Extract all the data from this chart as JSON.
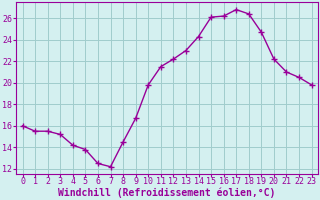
{
  "x": [
    0,
    1,
    2,
    3,
    4,
    5,
    6,
    7,
    8,
    9,
    10,
    11,
    12,
    13,
    14,
    15,
    16,
    17,
    18,
    19,
    20,
    21,
    22,
    23
  ],
  "y": [
    16.0,
    15.5,
    15.5,
    15.2,
    14.2,
    13.8,
    12.5,
    12.2,
    14.5,
    16.7,
    19.8,
    21.5,
    22.2,
    23.0,
    24.3,
    26.1,
    26.2,
    26.8,
    26.4,
    24.7,
    22.2,
    21.0,
    20.5,
    19.8
  ],
  "line_color": "#990099",
  "marker": "+",
  "bg_color": "#d4f0f0",
  "grid_color": "#a0cccc",
  "xlabel": "Windchill (Refroidissement éolien,°C)",
  "ylim": [
    11.5,
    27.5
  ],
  "xlim": [
    -0.5,
    23.5
  ],
  "yticks": [
    12,
    14,
    16,
    18,
    20,
    22,
    24,
    26
  ],
  "xticks": [
    0,
    1,
    2,
    3,
    4,
    5,
    6,
    7,
    8,
    9,
    10,
    11,
    12,
    13,
    14,
    15,
    16,
    17,
    18,
    19,
    20,
    21,
    22,
    23
  ],
  "tick_color": "#990099",
  "label_color": "#990099",
  "tick_fontsize": 6.0,
  "xlabel_fontsize": 7.0,
  "linewidth": 1.0,
  "markersize": 4,
  "markeredgewidth": 1.0
}
